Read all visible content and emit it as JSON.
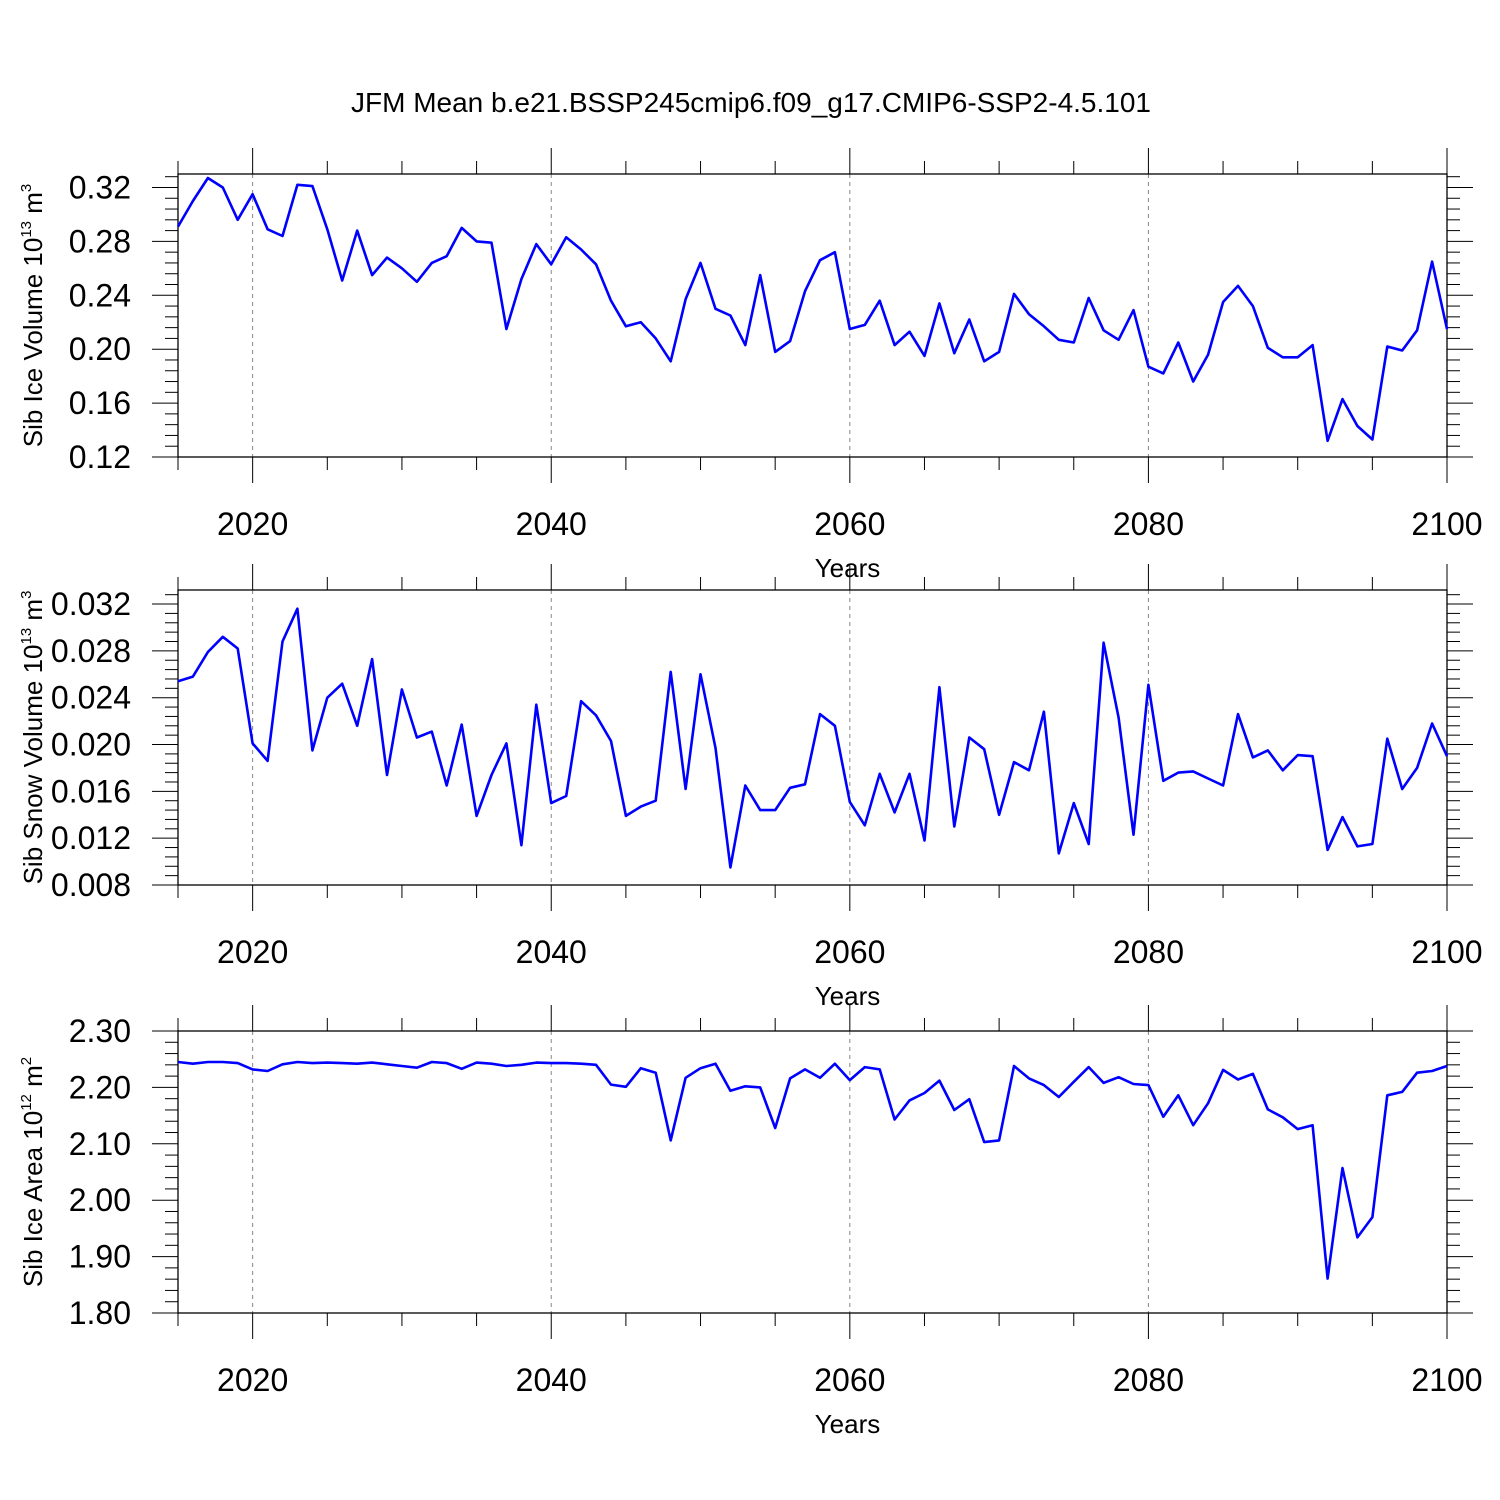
{
  "title": "JFM Mean b.e21.BSSP245cmip6.f09_g17.CMIP6-SSP2-4.5.101",
  "colors": {
    "line": "#0000FF",
    "axis": "#000000",
    "grid": "#888888"
  },
  "chart_data": [
    {
      "type": "line",
      "title": "JFM Mean b.e21.BSSP245cmip6.f09_g17.CMIP6-SSP2-4.5.101",
      "xlabel": "Years",
      "ylabel": {
        "prefix": "Sib Ice Volume 10",
        "exp": "13",
        "unit": " m",
        "unit_exp": "3"
      },
      "xlim": [
        2015,
        2100
      ],
      "ylim": [
        0.12,
        0.33
      ],
      "xticks": [
        2020,
        2040,
        2060,
        2080,
        2100
      ],
      "xtick_labels": [
        "2020",
        "2040",
        "2060",
        "2080",
        "2100"
      ],
      "yticks": [
        0.12,
        0.16,
        0.2,
        0.24,
        0.28,
        0.32
      ],
      "ytick_labels": [
        "0.12",
        "0.16",
        "0.20",
        "0.24",
        "0.28",
        "0.32"
      ],
      "grid": "vertical dashed at major x ticks",
      "x": [
        2015,
        2016,
        2017,
        2018,
        2019,
        2020,
        2021,
        2022,
        2023,
        2024,
        2025,
        2026,
        2027,
        2028,
        2029,
        2030,
        2031,
        2032,
        2033,
        2034,
        2035,
        2036,
        2037,
        2038,
        2039,
        2040,
        2041,
        2042,
        2043,
        2044,
        2045,
        2046,
        2047,
        2048,
        2049,
        2050,
        2051,
        2052,
        2053,
        2054,
        2055,
        2056,
        2057,
        2058,
        2059,
        2060,
        2061,
        2062,
        2063,
        2064,
        2065,
        2066,
        2067,
        2068,
        2069,
        2070,
        2071,
        2072,
        2073,
        2074,
        2075,
        2076,
        2077,
        2078,
        2079,
        2080,
        2081,
        2082,
        2083,
        2084,
        2085,
        2086,
        2087,
        2088,
        2089,
        2090,
        2091,
        2092,
        2093,
        2094,
        2095,
        2096,
        2097,
        2098,
        2099,
        2100
      ],
      "values": [
        0.291,
        0.31,
        0.327,
        0.32,
        0.296,
        0.315,
        0.289,
        0.284,
        0.322,
        0.321,
        0.289,
        0.251,
        0.288,
        0.255,
        0.268,
        0.26,
        0.25,
        0.264,
        0.269,
        0.29,
        0.28,
        0.279,
        0.215,
        0.252,
        0.278,
        0.263,
        0.283,
        0.274,
        0.263,
        0.236,
        0.217,
        0.22,
        0.208,
        0.191,
        0.237,
        0.264,
        0.23,
        0.225,
        0.203,
        0.255,
        0.198,
        0.206,
        0.243,
        0.266,
        0.272,
        0.215,
        0.218,
        0.236,
        0.203,
        0.213,
        0.195,
        0.234,
        0.197,
        0.222,
        0.191,
        0.198,
        0.241,
        0.226,
        0.217,
        0.207,
        0.205,
        0.238,
        0.214,
        0.207,
        0.229,
        0.187,
        0.182,
        0.205,
        0.176,
        0.196,
        0.235,
        0.247,
        0.232,
        0.201,
        0.194,
        0.194,
        0.203,
        0.132,
        0.163,
        0.143,
        0.133,
        0.202,
        0.199,
        0.214,
        0.265,
        0.215
      ]
    },
    {
      "type": "line",
      "xlabel": "Years",
      "ylabel": {
        "prefix": "Sib Snow Volume 10",
        "exp": "13",
        "unit": " m",
        "unit_exp": "3"
      },
      "xlim": [
        2015,
        2100
      ],
      "ylim": [
        0.008,
        0.0332
      ],
      "xticks": [
        2020,
        2040,
        2060,
        2080,
        2100
      ],
      "xtick_labels": [
        "2020",
        "2040",
        "2060",
        "2080",
        "2100"
      ],
      "yticks": [
        0.008,
        0.012,
        0.016,
        0.02,
        0.024,
        0.028,
        0.032
      ],
      "ytick_labels": [
        "0.008",
        "0.012",
        "0.016",
        "0.020",
        "0.024",
        "0.028",
        "0.032"
      ],
      "grid": "vertical dashed at major x ticks",
      "x": [
        2015,
        2016,
        2017,
        2018,
        2019,
        2020,
        2021,
        2022,
        2023,
        2024,
        2025,
        2026,
        2027,
        2028,
        2029,
        2030,
        2031,
        2032,
        2033,
        2034,
        2035,
        2036,
        2037,
        2038,
        2039,
        2040,
        2041,
        2042,
        2043,
        2044,
        2045,
        2046,
        2047,
        2048,
        2049,
        2050,
        2051,
        2052,
        2053,
        2054,
        2055,
        2056,
        2057,
        2058,
        2059,
        2060,
        2061,
        2062,
        2063,
        2064,
        2065,
        2066,
        2067,
        2068,
        2069,
        2070,
        2071,
        2072,
        2073,
        2074,
        2075,
        2076,
        2077,
        2078,
        2079,
        2080,
        2081,
        2082,
        2083,
        2084,
        2085,
        2086,
        2087,
        2088,
        2089,
        2090,
        2091,
        2092,
        2093,
        2094,
        2095,
        2096,
        2097,
        2098,
        2099,
        2100
      ],
      "values": [
        0.0254,
        0.0258,
        0.0279,
        0.0292,
        0.0282,
        0.0201,
        0.0186,
        0.0288,
        0.0316,
        0.0195,
        0.024,
        0.0252,
        0.0216,
        0.0273,
        0.0174,
        0.0247,
        0.0206,
        0.0211,
        0.0165,
        0.0217,
        0.0139,
        0.0174,
        0.0201,
        0.0114,
        0.0234,
        0.015,
        0.0156,
        0.0237,
        0.0225,
        0.0203,
        0.0139,
        0.0147,
        0.0152,
        0.0262,
        0.0162,
        0.026,
        0.0197,
        0.0095,
        0.0165,
        0.0144,
        0.0144,
        0.0163,
        0.0166,
        0.0226,
        0.0216,
        0.0151,
        0.0131,
        0.0175,
        0.0142,
        0.0175,
        0.0118,
        0.0249,
        0.013,
        0.0206,
        0.0196,
        0.014,
        0.0185,
        0.0178,
        0.0228,
        0.0107,
        0.015,
        0.0115,
        0.0287,
        0.0223,
        0.0123,
        0.0251,
        0.0169,
        0.0176,
        0.0177,
        0.0171,
        0.0165,
        0.0226,
        0.0189,
        0.0195,
        0.0178,
        0.0191,
        0.019,
        0.011,
        0.0138,
        0.0113,
        0.0115,
        0.0205,
        0.0162,
        0.018,
        0.0218,
        0.019
      ]
    },
    {
      "type": "line",
      "xlabel": "Years",
      "ylabel": {
        "prefix": "Sib Ice Area 10",
        "exp": "12",
        "unit": " m",
        "unit_exp": "2"
      },
      "xlim": [
        2015,
        2100
      ],
      "ylim": [
        1.8,
        2.3
      ],
      "xticks": [
        2020,
        2040,
        2060,
        2080,
        2100
      ],
      "xtick_labels": [
        "2020",
        "2040",
        "2060",
        "2080",
        "2100"
      ],
      "yticks": [
        1.8,
        1.9,
        2.0,
        2.1,
        2.2,
        2.3
      ],
      "ytick_labels": [
        "1.80",
        "1.90",
        "2.00",
        "2.10",
        "2.20",
        "2.30"
      ],
      "grid": "vertical dashed at major x ticks",
      "x": [
        2015,
        2016,
        2017,
        2018,
        2019,
        2020,
        2021,
        2022,
        2023,
        2024,
        2025,
        2026,
        2027,
        2028,
        2029,
        2030,
        2031,
        2032,
        2033,
        2034,
        2035,
        2036,
        2037,
        2038,
        2039,
        2040,
        2041,
        2042,
        2043,
        2044,
        2045,
        2046,
        2047,
        2048,
        2049,
        2050,
        2051,
        2052,
        2053,
        2054,
        2055,
        2056,
        2057,
        2058,
        2059,
        2060,
        2061,
        2062,
        2063,
        2064,
        2065,
        2066,
        2067,
        2068,
        2069,
        2070,
        2071,
        2072,
        2073,
        2074,
        2075,
        2076,
        2077,
        2078,
        2079,
        2080,
        2081,
        2082,
        2083,
        2084,
        2085,
        2086,
        2087,
        2088,
        2089,
        2090,
        2091,
        2092,
        2093,
        2094,
        2095,
        2096,
        2097,
        2098,
        2099,
        2100
      ],
      "values": [
        2.245,
        2.242,
        2.245,
        2.245,
        2.243,
        2.232,
        2.229,
        2.241,
        2.245,
        2.243,
        2.244,
        2.243,
        2.242,
        2.244,
        2.241,
        2.238,
        2.235,
        2.245,
        2.243,
        2.233,
        2.244,
        2.242,
        2.238,
        2.24,
        2.244,
        2.243,
        2.243,
        2.242,
        2.24,
        2.205,
        2.201,
        2.234,
        2.226,
        2.106,
        2.217,
        2.234,
        2.242,
        2.194,
        2.202,
        2.2,
        2.128,
        2.216,
        2.232,
        2.217,
        2.242,
        2.213,
        2.236,
        2.232,
        2.143,
        2.177,
        2.19,
        2.212,
        2.16,
        2.179,
        2.103,
        2.106,
        2.238,
        2.216,
        2.204,
        2.183,
        2.21,
        2.236,
        2.208,
        2.218,
        2.206,
        2.204,
        2.148,
        2.186,
        2.133,
        2.172,
        2.231,
        2.214,
        2.224,
        2.161,
        2.147,
        2.126,
        2.133,
        1.861,
        2.057,
        1.934,
        1.97,
        2.186,
        2.192,
        2.226,
        2.229,
        2.238
      ]
    }
  ]
}
